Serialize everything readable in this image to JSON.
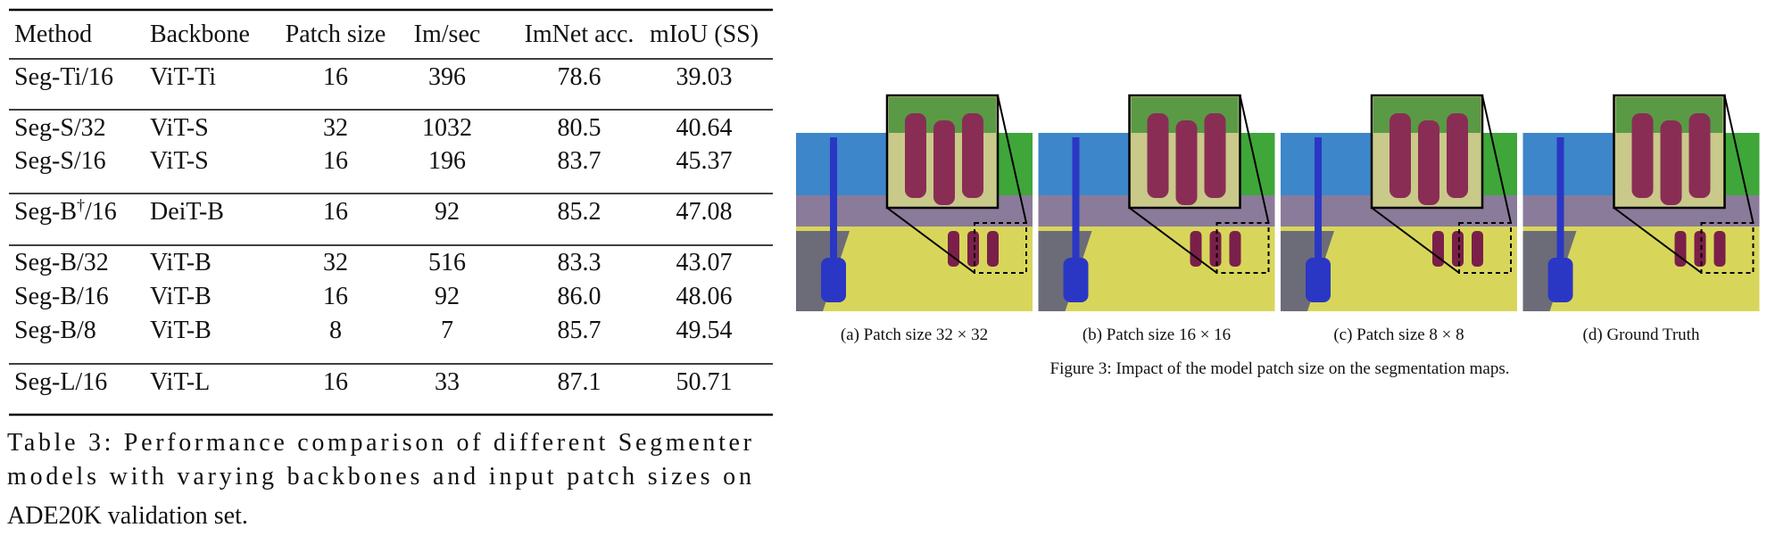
{
  "table": {
    "header": [
      "Method",
      "Backbone",
      "Patch size",
      "Im/sec",
      "ImNet acc.",
      "mIoU (SS)"
    ],
    "groups": [
      [
        [
          "Seg-Ti/16",
          "ViT-Ti",
          "16",
          "396",
          "78.6",
          "39.03"
        ]
      ],
      [
        [
          "Seg-S/32",
          "ViT-S",
          "32",
          "1032",
          "80.5",
          "40.64"
        ],
        [
          "Seg-S/16",
          "ViT-S",
          "16",
          "196",
          "83.7",
          "45.37"
        ]
      ],
      [
        [
          {
            "base": "Seg-B",
            "sup": "†",
            "rest": "/16"
          },
          "DeiT-B",
          "16",
          "92",
          "85.2",
          "47.08"
        ]
      ],
      [
        [
          "Seg-B/32",
          "ViT-B",
          "32",
          "516",
          "83.3",
          "43.07"
        ],
        [
          "Seg-B/16",
          "ViT-B",
          "16",
          "92",
          "86.0",
          "48.06"
        ],
        [
          "Seg-B/8",
          "ViT-B",
          "8",
          "7",
          "85.7",
          "49.54"
        ]
      ],
      [
        [
          "Seg-L/16",
          "ViT-L",
          "16",
          "33",
          "87.1",
          "50.71"
        ]
      ]
    ],
    "caption_lines": [
      "Table 3: Performance comparison of different Segmenter",
      "models with varying backbones and input patch sizes on",
      "ADE20K validation set."
    ]
  },
  "figure": {
    "subcaptions": [
      "(a) Patch size 32 × 32",
      "(b) Patch size 16 × 16",
      "(c) Patch size 8 × 8",
      "(d) Ground Truth"
    ],
    "caption": "Figure 3: Impact of the model patch size on the segmentation maps."
  }
}
